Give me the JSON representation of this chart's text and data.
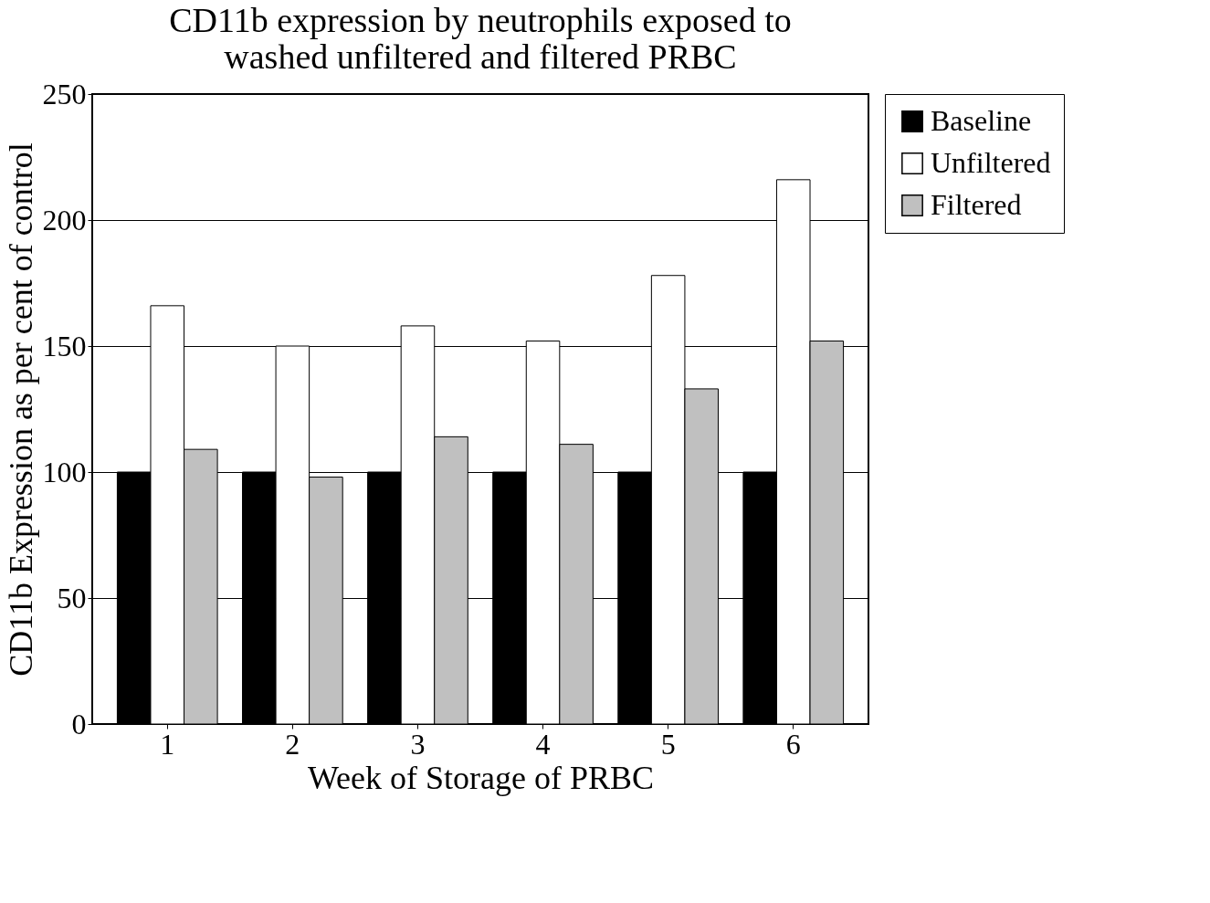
{
  "chart_data": {
    "type": "bar",
    "title": [
      "CD11b expression by neutrophils exposed to",
      "washed unfiltered and filtered PRBC"
    ],
    "xlabel": "Week of Storage of PRBC",
    "ylabel": "CD11b Expression as per cent of control",
    "categories": [
      "1",
      "2",
      "3",
      "4",
      "5",
      "6"
    ],
    "series": [
      {
        "name": "Baseline",
        "color": "#000000",
        "values": [
          100,
          100,
          100,
          100,
          100,
          100
        ]
      },
      {
        "name": "Unfiltered",
        "color": "#ffffff",
        "values": [
          166,
          150,
          158,
          152,
          178,
          216
        ]
      },
      {
        "name": "Filtered",
        "color": "#c0c0c0",
        "values": [
          109,
          98,
          114,
          111,
          133,
          152
        ]
      }
    ],
    "ylim": [
      0,
      250
    ],
    "yticks": [
      0,
      50,
      100,
      150,
      200,
      250
    ],
    "grid": "y",
    "legend": "right"
  }
}
